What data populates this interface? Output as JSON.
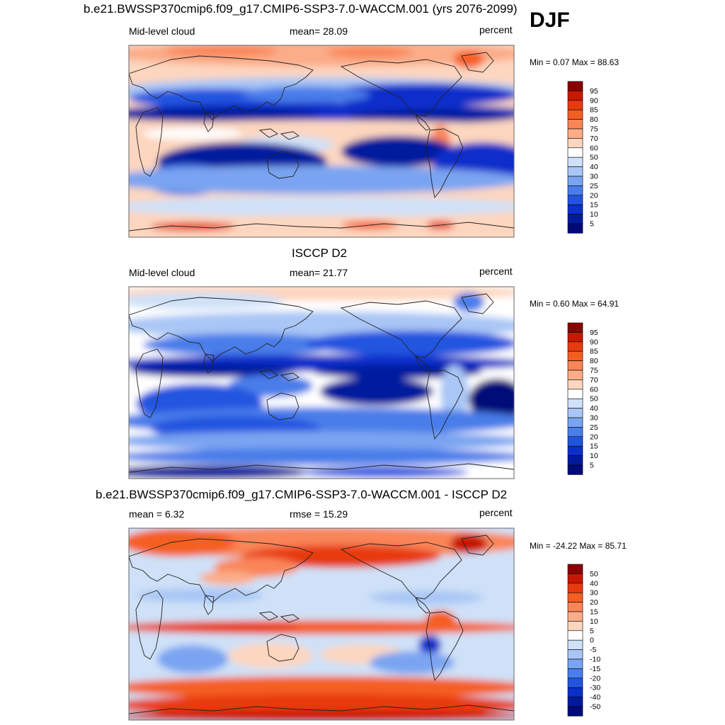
{
  "season": "DJF",
  "panels": [
    {
      "title": "b.e21.BWSSP370cmip6.f09_g17.CMIP6-SSP3-7.0-WACCM.001 (yrs 2076-2099)",
      "left_label": "Mid-level cloud",
      "center_label": "mean=  28.09",
      "right_label": "percent",
      "minmax": "Min =   0.07 Max =  88.63"
    },
    {
      "title": "ISCCP D2",
      "left_label": "Mid-level cloud",
      "center_label": "mean=  21.77",
      "right_label": "percent",
      "minmax": "Min =   0.60 Max =  64.91"
    },
    {
      "title": "b.e21.BWSSP370cmip6.f09_g17.CMIP6-SSP3-7.0-WACCM.001 - ISCCP D2",
      "left_label": "mean =   6.32",
      "center_label": "rmse =  15.29",
      "right_label": "percent",
      "minmax": "Min = -24.22 Max =  85.71"
    }
  ],
  "chart_data": [
    {
      "type": "heatmap",
      "title": "b.e21.BWSSP370cmip6.f09_g17.CMIP6-SSP3-7.0-WACCM.001 (yrs 2076-2099)",
      "variable": "Mid-level cloud",
      "units": "percent",
      "mean": 28.09,
      "min": 0.07,
      "max": 88.63,
      "colorbar_levels": [
        "95",
        "90",
        "85",
        "80",
        "75",
        "70",
        "60",
        "50",
        "40",
        "30",
        "25",
        "20",
        "15",
        "10",
        "5"
      ],
      "colorbar_colors": [
        "#8b0000",
        "#c81800",
        "#e83a10",
        "#f55e22",
        "#f98558",
        "#fbac88",
        "#fdd6bf",
        "#ffffff",
        "#cfe1f8",
        "#a9c6f5",
        "#7aa4f1",
        "#4a7de9",
        "#2254e0",
        "#0a2fca",
        "#001a9e",
        "#000b78"
      ]
    },
    {
      "type": "heatmap",
      "title": "ISCCP D2",
      "variable": "Mid-level cloud",
      "units": "percent",
      "mean": 21.77,
      "min": 0.6,
      "max": 64.91,
      "colorbar_levels": [
        "95",
        "90",
        "85",
        "80",
        "75",
        "70",
        "60",
        "50",
        "40",
        "30",
        "25",
        "20",
        "15",
        "10",
        "5"
      ],
      "colorbar_colors": [
        "#8b0000",
        "#c81800",
        "#e83a10",
        "#f55e22",
        "#f98558",
        "#fbac88",
        "#fdd6bf",
        "#ffffff",
        "#cfe1f8",
        "#a9c6f5",
        "#7aa4f1",
        "#4a7de9",
        "#2254e0",
        "#0a2fca",
        "#001a9e",
        "#000b78"
      ]
    },
    {
      "type": "heatmap",
      "title": "b.e21.BWSSP370cmip6.f09_g17.CMIP6-SSP3-7.0-WACCM.001 - ISCCP D2",
      "units": "percent",
      "mean": 6.32,
      "rmse": 15.29,
      "min": -24.22,
      "max": 85.71,
      "colorbar_levels": [
        "50",
        "40",
        "30",
        "20",
        "15",
        "10",
        "5",
        "0",
        "-5",
        "-10",
        "-15",
        "-20",
        "-30",
        "-40",
        "-50"
      ],
      "colorbar_colors": [
        "#8b0000",
        "#c81800",
        "#e83a10",
        "#f55e22",
        "#f98558",
        "#fbac88",
        "#fdd6bf",
        "#ffffff",
        "#cfe1f8",
        "#a9c6f5",
        "#7aa4f1",
        "#4a7de9",
        "#2254e0",
        "#0a2fca",
        "#001a9e",
        "#000b78"
      ]
    }
  ]
}
